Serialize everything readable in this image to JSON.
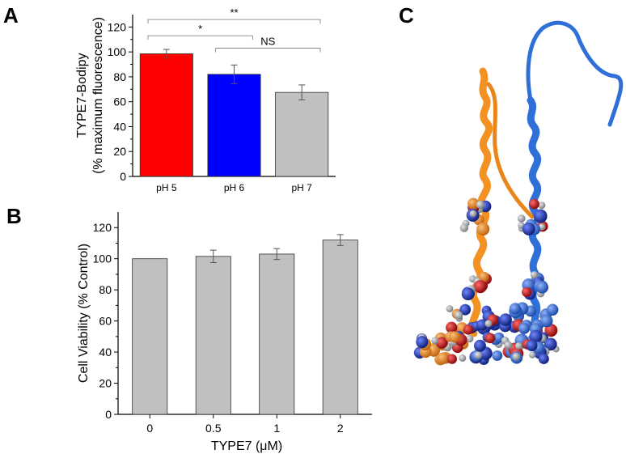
{
  "panels": {
    "a": {
      "letter": "A"
    },
    "b": {
      "letter": "B"
    },
    "c": {
      "letter": "C"
    }
  },
  "chart_data": [
    {
      "type": "bar",
      "panel": "A",
      "categories": [
        "pH 5",
        "pH 6",
        "pH 7"
      ],
      "values": [
        98.5,
        82,
        67.5
      ],
      "errors": [
        3.5,
        7.5,
        6
      ],
      "colors": [
        "#ff0000",
        "#0000ff",
        "#c0c0c0"
      ],
      "ylabel_line1": "TYPE7-Bodipy",
      "ylabel_line2": "(% maximum fluorescence)",
      "xlabel": "",
      "ylim": [
        0,
        130
      ],
      "yticks": [
        "0",
        "20",
        "40",
        "60",
        "80",
        "100",
        "120"
      ],
      "significance": [
        {
          "from": 0,
          "to": 1,
          "label": "*",
          "level": 113
        },
        {
          "from": 0,
          "to": 2,
          "label": "**",
          "level": 126
        },
        {
          "from": 1,
          "to": 2,
          "label": "NS",
          "level": 103
        }
      ],
      "grid": false
    },
    {
      "type": "bar",
      "panel": "B",
      "categories": [
        "0",
        "0.5",
        "1",
        "2"
      ],
      "values": [
        100,
        101.5,
        103,
        112
      ],
      "errors": [
        0,
        4,
        3.5,
        3.5
      ],
      "colors": [
        "#c0c0c0",
        "#c0c0c0",
        "#c0c0c0",
        "#c0c0c0"
      ],
      "ylabel": "Cell Viability (% Control)",
      "xlabel": "TYPE7 (μM)",
      "ylim": [
        0,
        130
      ],
      "yticks": [
        "0",
        "20",
        "40",
        "60",
        "80",
        "100",
        "120"
      ],
      "grid": false
    }
  ],
  "structures": [
    {
      "name": "orange-peptide",
      "color": "#f39223"
    },
    {
      "name": "blue-peptide",
      "color": "#2f6fd8"
    }
  ],
  "atom_colors": {
    "carbon": "#9aa0a6",
    "nitrogen": "#1f3bd1",
    "oxygen": "#d11a1a"
  }
}
